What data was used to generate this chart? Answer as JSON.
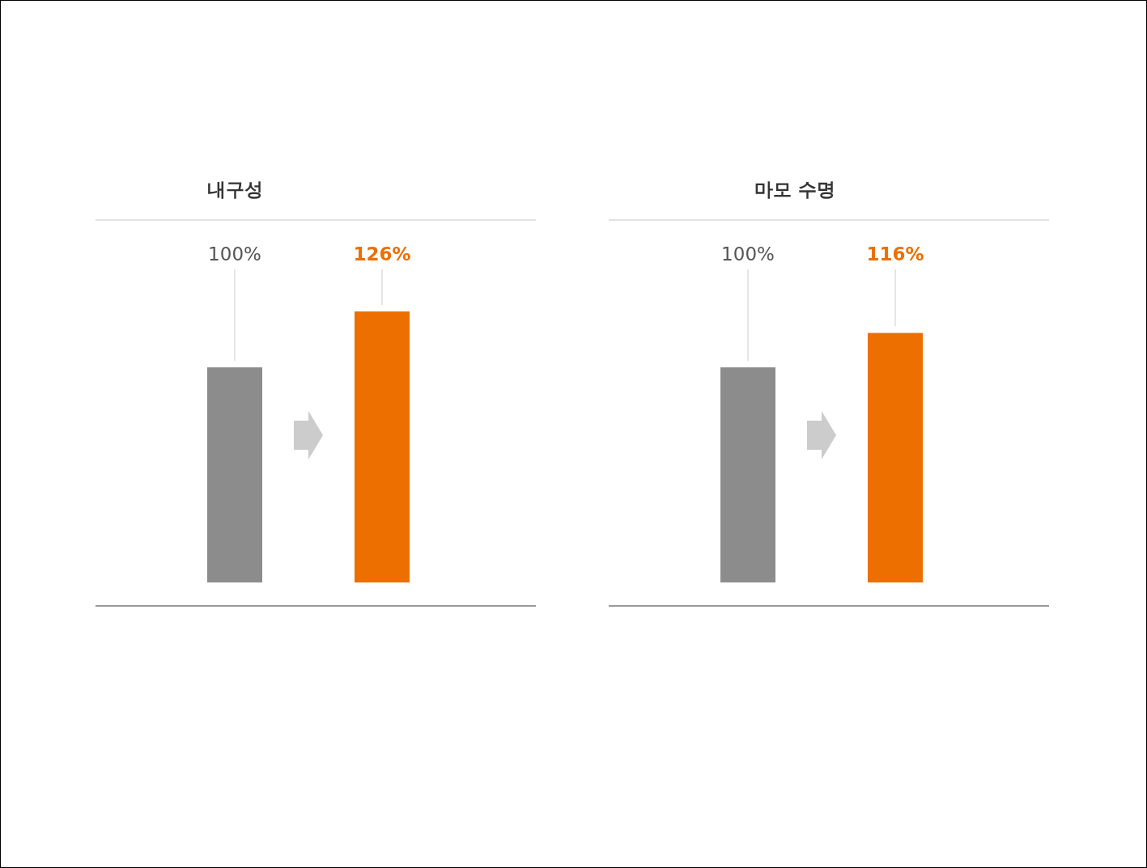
{
  "chart_data": [
    {
      "type": "bar",
      "title": "내구성",
      "categories": [
        null,
        null
      ],
      "values": [
        100,
        126
      ],
      "colors": [
        "#8c8c8c",
        "#ec6f00"
      ],
      "value_labels": [
        "100%",
        "126%"
      ]
    },
    {
      "type": "bar",
      "title": "마모 수명",
      "categories": [
        null,
        null
      ],
      "values": [
        100,
        116
      ],
      "colors": [
        "#8c8c8c",
        "#ec6f00"
      ],
      "value_labels": [
        "100%",
        "116%"
      ]
    }
  ]
}
